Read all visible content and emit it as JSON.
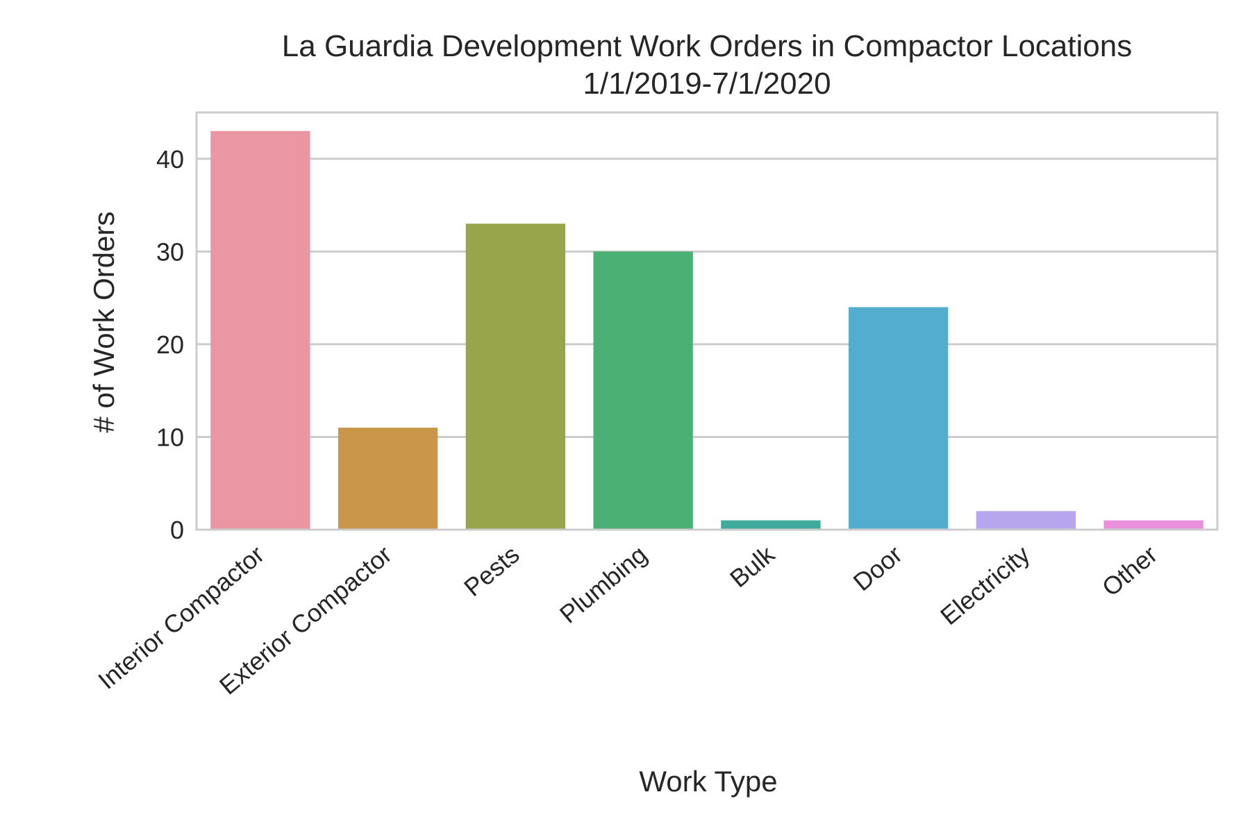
{
  "chart_data": {
    "type": "bar",
    "title_lines": [
      "La Guardia Development Work Orders in Compactor Locations",
      "1/1/2019-7/1/2020"
    ],
    "xlabel": "Work Type",
    "ylabel": "# of Work Orders",
    "categories": [
      "Interior Compactor",
      "Exterior Compactor",
      "Pests",
      "Plumbing",
      "Bulk",
      "Door",
      "Electricity",
      "Other"
    ],
    "values": [
      43,
      11,
      33,
      30,
      1,
      24,
      2,
      1
    ],
    "colors": [
      "#ea96a3",
      "#c9964a",
      "#98a54a",
      "#4bb074",
      "#3fa99c",
      "#53adcf",
      "#b7a6ee",
      "#ea8fd9"
    ],
    "ylim": [
      0,
      45
    ],
    "yticks": [
      0,
      10,
      20,
      30,
      40
    ],
    "grid": true,
    "legend": "none",
    "style": {
      "grid_color": "#cccccc",
      "spine_color": "#cccccc",
      "text_color": "#262626"
    }
  }
}
